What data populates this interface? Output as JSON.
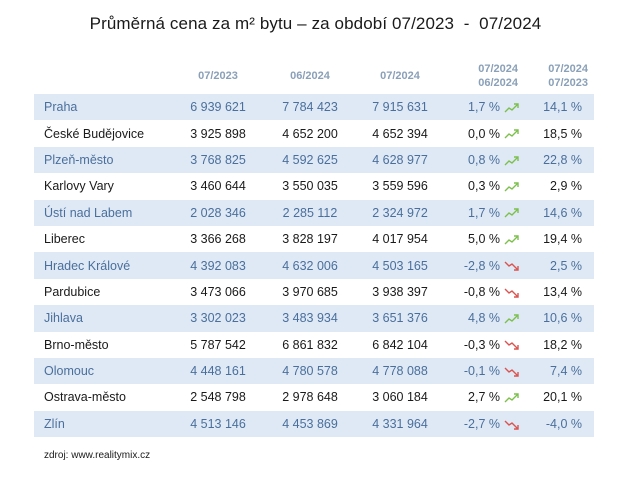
{
  "title": "Průměrná cena za m² bytu – za období 07/2023  -  07/2024",
  "colors": {
    "up": "#7cc04b",
    "down": "#d9534f",
    "alt_row_bg": "#dfe9f5",
    "header_text": "#8aa0b8"
  },
  "headers": {
    "col1": "07/2023",
    "col2": "06/2024",
    "col3": "07/2024",
    "col4_line1": "07/2024",
    "col4_line2": "06/2024",
    "col5_line1": "07/2024",
    "col5_line2": "07/2023"
  },
  "rows": [
    {
      "city": "Praha",
      "v2023_07": "6 939 621",
      "v2024_06": "7 784 423",
      "v2024_07": "7 915 631",
      "change": "1,7 %",
      "trend": "up-icon",
      "yoy": "14,1 %"
    },
    {
      "city": "České Budějovice",
      "v2023_07": "3 925 898",
      "v2024_06": "4 652 200",
      "v2024_07": "4 652 394",
      "change": "0,0 %",
      "trend": "up-icon",
      "yoy": "18,5 %"
    },
    {
      "city": "Plzeň-město",
      "v2023_07": "3 768 825",
      "v2024_06": "4 592 625",
      "v2024_07": "4 628 977",
      "change": "0,8 %",
      "trend": "up-icon",
      "yoy": "22,8 %"
    },
    {
      "city": "Karlovy Vary",
      "v2023_07": "3 460 644",
      "v2024_06": "3 550 035",
      "v2024_07": "3 559 596",
      "change": "0,3 %",
      "trend": "up-icon",
      "yoy": "2,9 %"
    },
    {
      "city": "Ústí nad Labem",
      "v2023_07": "2 028 346",
      "v2024_06": "2 285 112",
      "v2024_07": "2 324 972",
      "change": "1,7 %",
      "trend": "up-icon",
      "yoy": "14,6 %"
    },
    {
      "city": "Liberec",
      "v2023_07": "3 366 268",
      "v2024_06": "3 828 197",
      "v2024_07": "4 017 954",
      "change": "5,0 %",
      "trend": "up-icon",
      "yoy": "19,4 %"
    },
    {
      "city": "Hradec Králové",
      "v2023_07": "4 392 083",
      "v2024_06": "4 632 006",
      "v2024_07": "4 503 165",
      "change": "-2,8 %",
      "trend": "down-icon",
      "yoy": "2,5 %"
    },
    {
      "city": "Pardubice",
      "v2023_07": "3 473 066",
      "v2024_06": "3 970 685",
      "v2024_07": "3 938 397",
      "change": "-0,8 %",
      "trend": "down-icon",
      "yoy": "13,4 %"
    },
    {
      "city": "Jihlava",
      "v2023_07": "3 302 023",
      "v2024_06": "3 483 934",
      "v2024_07": "3 651 376",
      "change": "4,8 %",
      "trend": "up-icon",
      "yoy": "10,6 %"
    },
    {
      "city": "Brno-město",
      "v2023_07": "5 787 542",
      "v2024_06": "6 861 832",
      "v2024_07": "6 842 104",
      "change": "-0,3 %",
      "trend": "down-icon",
      "yoy": "18,2 %"
    },
    {
      "city": "Olomouc",
      "v2023_07": "4 448 161",
      "v2024_06": "4 780 578",
      "v2024_07": "4 778 088",
      "change": "-0,1 %",
      "trend": "down-icon",
      "yoy": "7,4 %"
    },
    {
      "city": "Ostrava-město",
      "v2023_07": "2 548 798",
      "v2024_06": "2 978 648",
      "v2024_07": "3 060 184",
      "change": "2,7 %",
      "trend": "up-icon",
      "yoy": "20,1 %"
    },
    {
      "city": "Zlín",
      "v2023_07": "4 513 146",
      "v2024_06": "4 453 869",
      "v2024_07": "4 331 964",
      "change": "-2,7 %",
      "trend": "down-icon",
      "yoy": "-4,0 %"
    }
  ],
  "source": "zdroj:  www.realitymix.cz"
}
